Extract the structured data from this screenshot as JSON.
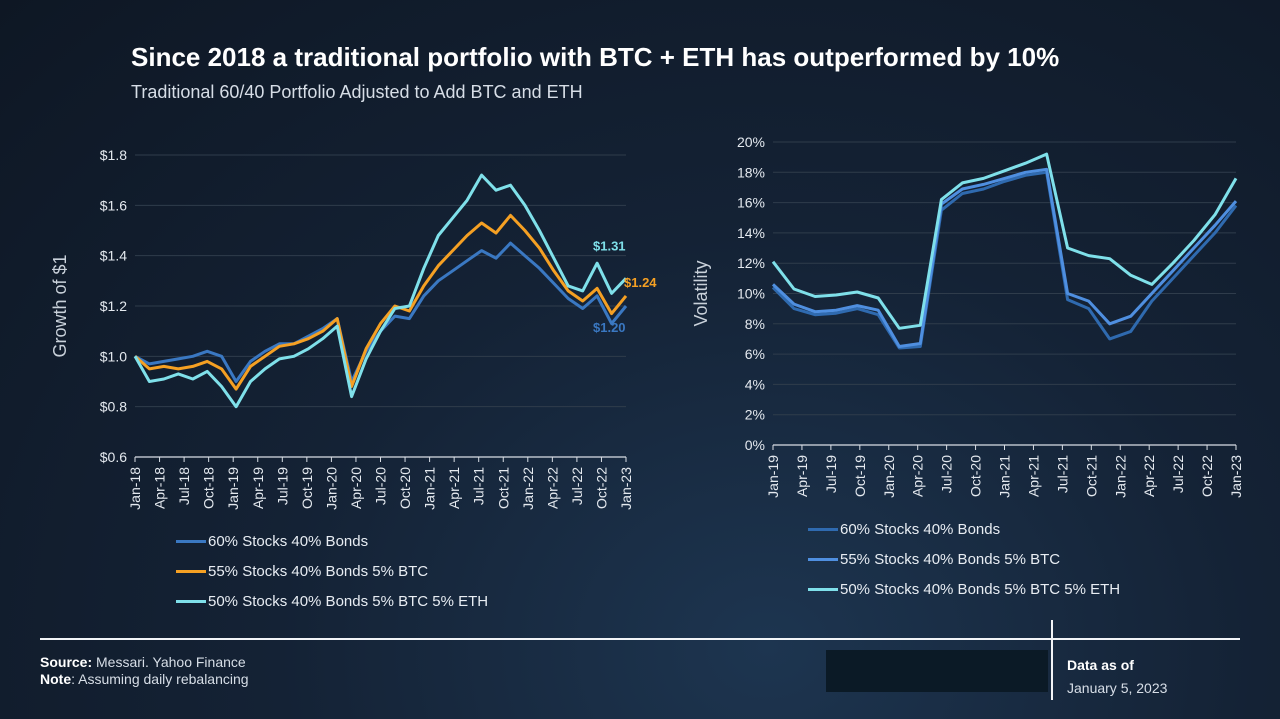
{
  "header": {
    "title": "Since 2018 a traditional portfolio with BTC + ETH has outperformed by 10%",
    "subtitle": "Traditional 60/40 Portfolio Adjusted to Add BTC and ETH"
  },
  "colors": {
    "s1": "#3a78c2",
    "s2": "#f5a023",
    "s3": "#7fe0ea",
    "s2b": "#4f8fe0",
    "grid": "#2f3c4b"
  },
  "legend_labels": {
    "left_s1": "60% Stocks 40% Bonds",
    "left_s2": "55% Stocks 40% Bonds 5% BTC",
    "left_s3": "50% Stocks 40% Bonds 5% BTC 5% ETH",
    "right_s1": "60% Stocks 40% Bonds",
    "right_s2": "55% Stocks 40% Bonds 5% BTC",
    "right_s3": "50% Stocks 40% Bonds 5% BTC 5% ETH"
  },
  "chart_data": [
    {
      "type": "line",
      "ylabel": "Growth of $1",
      "ylim": [
        0.6,
        1.8
      ],
      "yticks": [
        "$0.6",
        "$0.8",
        "$1.0",
        "$1.2",
        "$1.4",
        "$1.6",
        "$1.8"
      ],
      "xticks": [
        "Jan-18",
        "Apr-18",
        "Jul-18",
        "Oct-18",
        "Jan-19",
        "Apr-19",
        "Jul-19",
        "Oct-19",
        "Jan-20",
        "Apr-20",
        "Jul-20",
        "Oct-20",
        "Jan-21",
        "Apr-21",
        "Jul-21",
        "Oct-21",
        "Jan-22",
        "Apr-22",
        "Jul-22",
        "Oct-22",
        "Jan-23"
      ],
      "grid": true,
      "legend_position": "bottom",
      "end_labels": [
        {
          "text": "$1.31",
          "series": 2
        },
        {
          "text": "$1.24",
          "series": 1
        },
        {
          "text": "$1.20",
          "series": 0
        }
      ],
      "series": [
        {
          "name": "60% Stocks 40% Bonds",
          "values": [
            1.0,
            0.97,
            0.98,
            0.99,
            1.0,
            1.02,
            1.0,
            0.9,
            0.98,
            1.02,
            1.05,
            1.05,
            1.08,
            1.11,
            1.15,
            0.9,
            1.02,
            1.1,
            1.16,
            1.15,
            1.24,
            1.3,
            1.34,
            1.38,
            1.42,
            1.39,
            1.45,
            1.4,
            1.35,
            1.29,
            1.23,
            1.19,
            1.24,
            1.13,
            1.2
          ]
        },
        {
          "name": "55% Stocks 40% Bonds 5% BTC",
          "values": [
            1.0,
            0.95,
            0.96,
            0.95,
            0.96,
            0.98,
            0.95,
            0.87,
            0.96,
            1.0,
            1.04,
            1.05,
            1.07,
            1.1,
            1.15,
            0.88,
            1.03,
            1.13,
            1.2,
            1.18,
            1.28,
            1.36,
            1.42,
            1.48,
            1.53,
            1.49,
            1.56,
            1.5,
            1.43,
            1.34,
            1.26,
            1.22,
            1.27,
            1.17,
            1.24
          ]
        },
        {
          "name": "50% Stocks 40% Bonds 5% BTC 5% ETH",
          "values": [
            1.0,
            0.9,
            0.91,
            0.93,
            0.91,
            0.94,
            0.88,
            0.8,
            0.9,
            0.95,
            0.99,
            1.0,
            1.03,
            1.07,
            1.12,
            0.84,
            0.99,
            1.1,
            1.19,
            1.2,
            1.35,
            1.48,
            1.55,
            1.62,
            1.72,
            1.66,
            1.68,
            1.6,
            1.5,
            1.39,
            1.28,
            1.26,
            1.37,
            1.25,
            1.31
          ]
        }
      ]
    },
    {
      "type": "line",
      "ylabel": "Volatility",
      "ylim": [
        0,
        20
      ],
      "yticks": [
        "0%",
        "2%",
        "4%",
        "6%",
        "8%",
        "10%",
        "12%",
        "14%",
        "16%",
        "18%",
        "20%"
      ],
      "xticks": [
        "Jan-19",
        "Apr-19",
        "Jul-19",
        "Oct-19",
        "Jan-20",
        "Apr-20",
        "Jul-20",
        "Oct-20",
        "Jan-21",
        "Apr-21",
        "Jul-21",
        "Oct-21",
        "Jan-22",
        "Apr-22",
        "Jul-22",
        "Oct-22",
        "Jan-23"
      ],
      "grid": true,
      "legend_position": "bottom",
      "series": [
        {
          "name": "60% Stocks 40% Bonds",
          "values": [
            10.4,
            9.0,
            8.6,
            8.7,
            9.0,
            8.6,
            6.4,
            6.5,
            15.5,
            16.6,
            16.9,
            17.4,
            17.8,
            18.0,
            9.6,
            9.0,
            7.0,
            7.5,
            9.5,
            11.0,
            12.5,
            14.0,
            15.8
          ]
        },
        {
          "name": "55% Stocks 40% Bonds 5% BTC",
          "values": [
            10.6,
            9.3,
            8.8,
            8.9,
            9.2,
            8.9,
            6.5,
            6.7,
            15.9,
            16.9,
            17.2,
            17.6,
            18.0,
            18.2,
            10.0,
            9.5,
            8.0,
            8.5,
            10.0,
            11.5,
            13.0,
            14.5,
            16.1
          ]
        },
        {
          "name": "50% Stocks 40% Bonds 5% BTC 5% ETH",
          "values": [
            12.1,
            10.3,
            9.8,
            9.9,
            10.1,
            9.7,
            7.7,
            7.9,
            16.2,
            17.3,
            17.6,
            18.1,
            18.6,
            19.2,
            13.0,
            12.5,
            12.3,
            11.2,
            10.6,
            12.0,
            13.5,
            15.2,
            17.6
          ]
        }
      ]
    }
  ],
  "footer": {
    "source_label": "Source:",
    "source_text": " Messari. Yahoo Finance",
    "note_label": "Note",
    "note_text": ": Assuming daily rebalancing",
    "asof_label": "Data as of",
    "asof_date": "January 5, 2023"
  }
}
